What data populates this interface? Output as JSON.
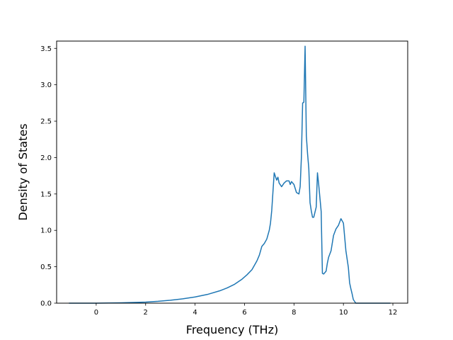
{
  "chart_data": {
    "type": "line",
    "title": "",
    "xlabel": "Frequency (THz)",
    "ylabel": "Density of States",
    "xlim": [
      -1.6,
      12.6
    ],
    "ylim": [
      0.0,
      3.6
    ],
    "xticks": [
      0,
      2,
      4,
      6,
      8,
      10,
      12
    ],
    "yticks": [
      0.0,
      0.5,
      1.0,
      1.5,
      2.0,
      2.5,
      3.0,
      3.5
    ],
    "xtick_labels": [
      "0",
      "2",
      "4",
      "6",
      "8",
      "10",
      "12"
    ],
    "ytick_labels": [
      "0.0",
      "0.5",
      "1.0",
      "1.5",
      "2.0",
      "2.5",
      "3.0",
      "3.5"
    ],
    "grid": false,
    "legend": null,
    "series": [
      {
        "color": "#1f77b4",
        "x": [
          -1.1,
          -0.5,
          0.0,
          0.5,
          1.0,
          1.5,
          2.0,
          2.5,
          3.0,
          3.5,
          4.0,
          4.5,
          5.0,
          5.3,
          5.6,
          5.9,
          6.1,
          6.3,
          6.5,
          6.6,
          6.7,
          6.8,
          6.9,
          7.0,
          7.05,
          7.1,
          7.2,
          7.3,
          7.35,
          7.4,
          7.5,
          7.6,
          7.7,
          7.8,
          7.85,
          7.9,
          8.0,
          8.1,
          8.2,
          8.25,
          8.3,
          8.35,
          8.4,
          8.45,
          8.5,
          8.52,
          8.55,
          8.6,
          8.65,
          8.7,
          8.75,
          8.8,
          8.9,
          8.95,
          9.0,
          9.1,
          9.15,
          9.2,
          9.3,
          9.35,
          9.4,
          9.5,
          9.6,
          9.7,
          9.8,
          9.9,
          10.0,
          10.1,
          10.2,
          10.25,
          10.3,
          10.35,
          10.4,
          10.5,
          10.6,
          10.7,
          10.75,
          10.8,
          11.0,
          11.5,
          11.9
        ],
        "y": [
          0.0,
          0.0,
          0.0,
          0.002,
          0.005,
          0.01,
          0.015,
          0.025,
          0.04,
          0.06,
          0.085,
          0.12,
          0.17,
          0.21,
          0.26,
          0.33,
          0.39,
          0.46,
          0.58,
          0.66,
          0.78,
          0.82,
          0.88,
          1.0,
          1.1,
          1.27,
          1.79,
          1.69,
          1.73,
          1.65,
          1.6,
          1.65,
          1.68,
          1.68,
          1.63,
          1.67,
          1.63,
          1.52,
          1.5,
          1.6,
          2.0,
          2.75,
          2.76,
          3.53,
          2.3,
          2.2,
          2.05,
          1.85,
          1.38,
          1.27,
          1.18,
          1.18,
          1.32,
          1.79,
          1.63,
          1.26,
          0.41,
          0.4,
          0.44,
          0.55,
          0.63,
          0.72,
          0.93,
          1.02,
          1.07,
          1.16,
          1.1,
          0.72,
          0.49,
          0.28,
          0.2,
          0.13,
          0.05,
          0.0,
          0.0,
          0.0,
          0.0,
          0.0,
          0.0,
          0.0,
          0.0
        ]
      }
    ]
  }
}
